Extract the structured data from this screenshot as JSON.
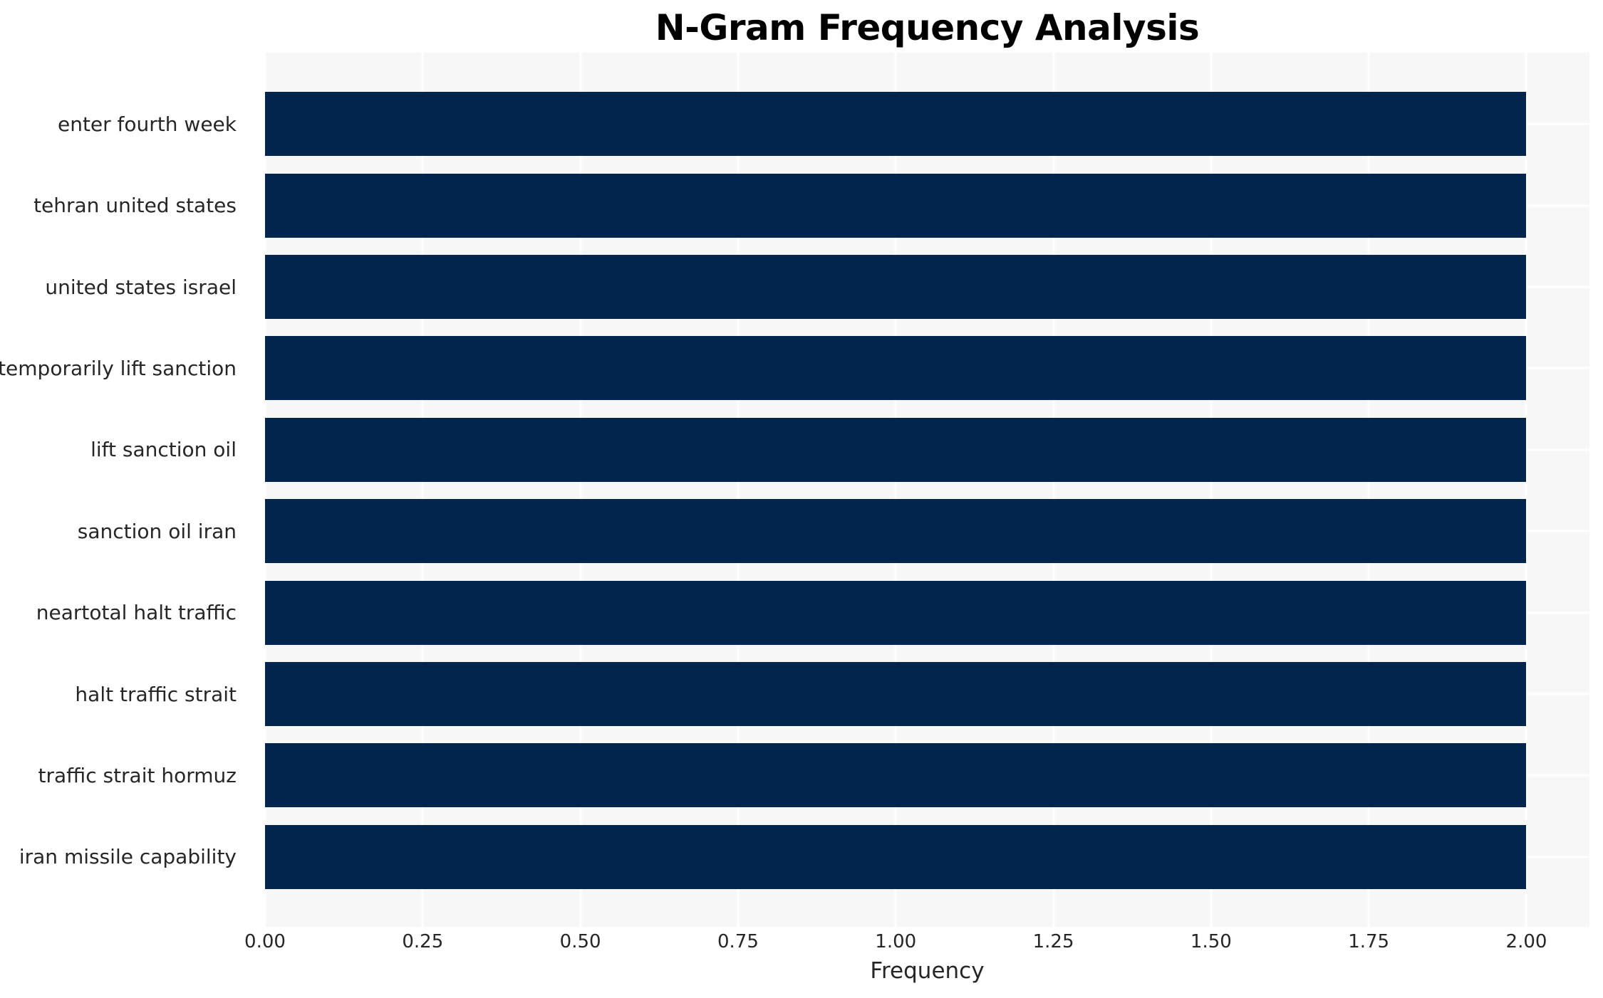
{
  "chart_data": {
    "type": "bar",
    "orientation": "horizontal",
    "title": "N-Gram Frequency Analysis",
    "xlabel": "Frequency",
    "ylabel": "",
    "categories": [
      "enter fourth week",
      "tehran united states",
      "united states israel",
      "temporarily lift sanction",
      "lift sanction oil",
      "sanction oil iran",
      "neartotal halt traffic",
      "halt traffic strait",
      "traffic strait hormuz",
      "iran missile capability"
    ],
    "values": [
      2,
      2,
      2,
      2,
      2,
      2,
      2,
      2,
      2,
      2
    ],
    "xlim": [
      0,
      2.1
    ],
    "xtick_values": [
      0,
      0.25,
      0.5,
      0.75,
      1.0,
      1.25,
      1.5,
      1.75,
      2.0
    ],
    "xtick_labels": [
      "0.00",
      "0.25",
      "0.50",
      "0.75",
      "1.00",
      "1.25",
      "1.50",
      "1.75",
      "2.00"
    ],
    "grid": true,
    "legend": "none",
    "colors": {
      "bar": "#02254d",
      "plot_background": "#f7f7f7",
      "gridline": "#ffffff",
      "title_text": "#000000",
      "tick_text": "#262626",
      "figure_background": "#ffffff"
    }
  }
}
